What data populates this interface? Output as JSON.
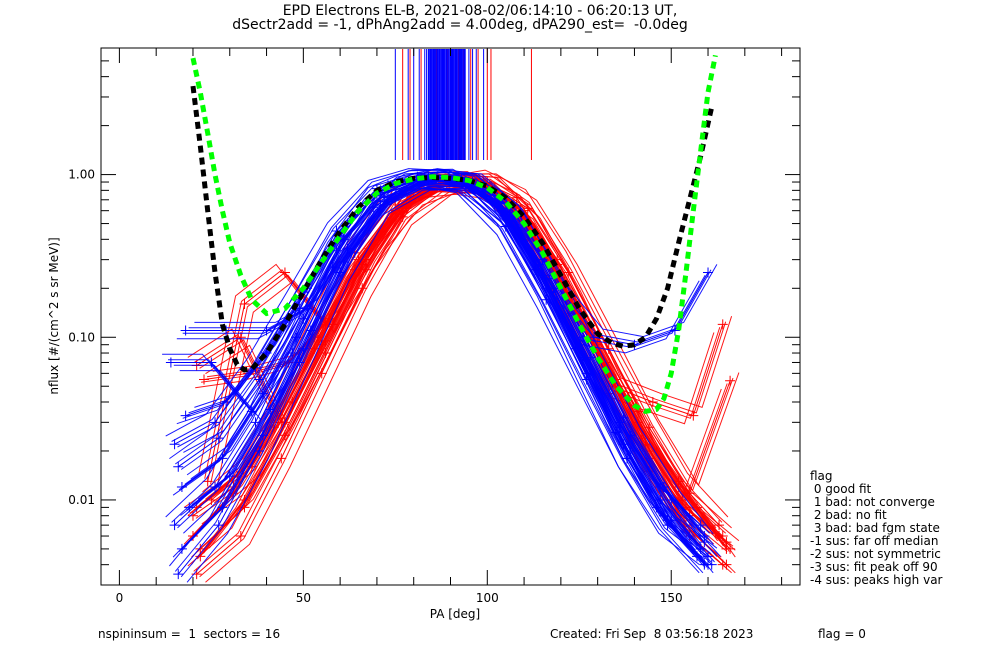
{
  "chart_data": {
    "type": "line",
    "title_line1": "EPD Electrons EL-B, 2021-08-02/06:14:10 - 06:20:13 UT,",
    "title_line2": "dSectr2add = -1, dPhAng2add = 4.00deg, dPA290_est=  -0.0deg",
    "xlabel": "PA [deg]",
    "ylabel": "nflux [#/(cm^2 s sr MeV)]",
    "xlim": [
      -5,
      185
    ],
    "ylim": [
      0.003,
      6
    ],
    "yscale": "log",
    "x_ticks": [
      0,
      50,
      100,
      150
    ],
    "x_tick_labels": [
      "0",
      "50",
      "100",
      "150"
    ],
    "y_ticks": [
      1.0,
      0.1,
      0.01
    ],
    "y_tick_labels": [
      "1.00",
      "0.10",
      "0.01"
    ],
    "colors": {
      "red": "#ff0000",
      "blue": "#0000ff",
      "green": "#00ff00",
      "black": "#000000"
    },
    "peak_marker_lines": {
      "blue": [
        75,
        78.5,
        80,
        81.5,
        83,
        83.5,
        84,
        84.5,
        85,
        85.5,
        86,
        86.5,
        87,
        87.5,
        88,
        88.5,
        89,
        89.5,
        90,
        90.5,
        91,
        91.5,
        92,
        92.5,
        93,
        93.5,
        94,
        95,
        96,
        97,
        99
      ],
      "red": [
        77,
        79,
        82,
        86.2,
        89.2,
        92.2,
        93.7,
        95.5,
        97.5,
        100,
        101,
        112
      ]
    },
    "fit_black": {
      "x": [
        20,
        22,
        24,
        26,
        28,
        30,
        32,
        34,
        36,
        40,
        45,
        50,
        55,
        60,
        65,
        70,
        75,
        80,
        85,
        90,
        95,
        100,
        105,
        110,
        115,
        120,
        125,
        130,
        134,
        137,
        140,
        143,
        146,
        149,
        152,
        155,
        158,
        161
      ],
      "y": [
        3.5,
        1.5,
        0.6,
        0.25,
        0.12,
        0.085,
        0.068,
        0.063,
        0.064,
        0.08,
        0.12,
        0.19,
        0.3,
        0.45,
        0.63,
        0.8,
        0.9,
        0.95,
        0.96,
        0.95,
        0.92,
        0.85,
        0.72,
        0.55,
        0.38,
        0.24,
        0.15,
        0.105,
        0.092,
        0.088,
        0.09,
        0.1,
        0.13,
        0.2,
        0.38,
        0.7,
        1.3,
        2.6
      ]
    },
    "fit_green": {
      "x": [
        20,
        22,
        24,
        26,
        28,
        30,
        33,
        36,
        40,
        45,
        50,
        55,
        60,
        65,
        70,
        75,
        80,
        85,
        90,
        95,
        100,
        105,
        110,
        115,
        120,
        125,
        130,
        135,
        140,
        143,
        146,
        148,
        150,
        152,
        154,
        156,
        158,
        160,
        162
      ],
      "y": [
        5.2,
        3.2,
        1.8,
        1.0,
        0.6,
        0.38,
        0.24,
        0.17,
        0.14,
        0.15,
        0.2,
        0.29,
        0.42,
        0.6,
        0.77,
        0.88,
        0.94,
        0.97,
        0.96,
        0.92,
        0.83,
        0.68,
        0.5,
        0.33,
        0.2,
        0.12,
        0.075,
        0.05,
        0.038,
        0.035,
        0.036,
        0.042,
        0.06,
        0.11,
        0.25,
        0.6,
        1.4,
        3.2,
        5.4
      ]
    },
    "series": [
      {
        "name": "red-trace",
        "color": "red",
        "x": [
          21,
          33,
          44,
          55,
          66,
          77,
          88,
          99,
          110,
          121,
          132,
          143,
          154,
          165
        ],
        "y": [
          0.0035,
          0.006,
          0.018,
          0.06,
          0.2,
          0.55,
          0.85,
          0.9,
          0.6,
          0.22,
          0.07,
          0.02,
          0.007,
          0.004
        ]
      },
      {
        "name": "red-trace",
        "color": "red",
        "x": [
          22,
          34,
          45,
          56,
          67,
          78,
          89,
          100,
          111,
          122,
          133,
          144,
          155,
          166
        ],
        "y": [
          0.005,
          0.009,
          0.025,
          0.08,
          0.26,
          0.62,
          0.88,
          0.86,
          0.5,
          0.18,
          0.06,
          0.018,
          0.008,
          0.005
        ]
      },
      {
        "name": "red-trace",
        "color": "red",
        "x": [
          20,
          31,
          42,
          53,
          64,
          75,
          86,
          97,
          108,
          119,
          130,
          141,
          152,
          163
        ],
        "y": [
          0.008,
          0.012,
          0.03,
          0.1,
          0.33,
          0.7,
          0.92,
          0.93,
          0.65,
          0.28,
          0.09,
          0.03,
          0.012,
          0.006
        ]
      },
      {
        "name": "red-trace",
        "color": "red",
        "x": [
          23,
          35,
          46,
          57,
          68,
          79,
          90,
          101,
          112,
          123,
          134,
          145,
          156,
          164
        ],
        "y": [
          0.055,
          0.06,
          0.07,
          0.13,
          0.35,
          0.7,
          0.9,
          0.85,
          0.48,
          0.17,
          0.05,
          0.04,
          0.033,
          0.12
        ]
      },
      {
        "name": "red-trace",
        "color": "red",
        "x": [
          21,
          33,
          44,
          55,
          66,
          77,
          88,
          99,
          110,
          121,
          132,
          143,
          154,
          165
        ],
        "y": [
          0.067,
          0.1,
          0.03,
          0.09,
          0.28,
          0.62,
          0.9,
          0.88,
          0.55,
          0.2,
          0.065,
          0.022,
          0.009,
          0.0055
        ]
      },
      {
        "name": "red-trace",
        "color": "red",
        "x": [
          22,
          34,
          45,
          56,
          67,
          78,
          89,
          100,
          111,
          122,
          133,
          144,
          155,
          166
        ],
        "y": [
          0.0045,
          0.01,
          0.03,
          0.095,
          0.3,
          0.66,
          0.9,
          0.9,
          0.62,
          0.25,
          0.085,
          0.028,
          0.011,
          0.054
        ]
      },
      {
        "name": "red-trace",
        "color": "red",
        "x": [
          24,
          34,
          45,
          56,
          67,
          78,
          89,
          100,
          111,
          122,
          133,
          144,
          155,
          164
        ],
        "y": [
          0.013,
          0.16,
          0.25,
          0.12,
          0.3,
          0.8,
          0.85,
          0.78,
          0.4,
          0.14,
          0.045,
          0.015,
          0.006,
          0.004
        ]
      },
      {
        "name": "red-trace",
        "color": "red",
        "x": [
          20,
          31,
          42,
          53,
          64,
          75,
          86,
          97,
          108,
          119,
          130,
          141,
          152,
          163
        ],
        "y": [
          0.006,
          0.011,
          0.028,
          0.085,
          0.26,
          0.6,
          0.86,
          0.95,
          0.72,
          0.3,
          0.1,
          0.035,
          0.013,
          0.007
        ]
      },
      {
        "name": "red-trace",
        "color": "red",
        "x": [
          25,
          36,
          47,
          58,
          69,
          80,
          91,
          102,
          113,
          124,
          135,
          146,
          157,
          165
        ],
        "y": [
          0.01,
          0.016,
          0.04,
          0.12,
          0.37,
          0.73,
          0.9,
          0.82,
          0.4,
          0.15,
          0.055,
          0.02,
          0.009,
          0.005
        ]
      },
      {
        "name": "red-trace",
        "color": "red",
        "x": [
          21,
          32,
          43,
          54,
          65,
          76,
          87,
          98,
          109,
          120,
          131,
          142,
          153,
          164
        ],
        "y": [
          0.009,
          0.014,
          0.035,
          0.1,
          0.3,
          0.65,
          0.88,
          0.9,
          0.6,
          0.22,
          0.07,
          0.024,
          0.01,
          0.006
        ]
      },
      {
        "name": "blue-trace",
        "color": "blue",
        "x": [
          16,
          27,
          38,
          49,
          60,
          71,
          82,
          93,
          104,
          115,
          126,
          137,
          148,
          159
        ],
        "y": [
          0.0035,
          0.007,
          0.02,
          0.07,
          0.25,
          0.65,
          0.9,
          0.92,
          0.62,
          0.24,
          0.075,
          0.022,
          0.008,
          0.004
        ]
      },
      {
        "name": "blue-trace",
        "color": "blue",
        "x": [
          17,
          28,
          39,
          50,
          61,
          72,
          83,
          94,
          105,
          116,
          127,
          138,
          149,
          160
        ],
        "y": [
          0.005,
          0.009,
          0.025,
          0.085,
          0.29,
          0.68,
          0.92,
          0.9,
          0.56,
          0.2,
          0.06,
          0.018,
          0.007,
          0.0045
        ]
      },
      {
        "name": "blue-trace",
        "color": "blue",
        "x": [
          15,
          26,
          37,
          48,
          59,
          70,
          81,
          92,
          103,
          114,
          125,
          136,
          147,
          158
        ],
        "y": [
          0.007,
          0.012,
          0.03,
          0.1,
          0.34,
          0.74,
          0.94,
          0.95,
          0.68,
          0.28,
          0.09,
          0.028,
          0.01,
          0.005
        ]
      },
      {
        "name": "blue-trace",
        "color": "blue",
        "x": [
          18,
          29,
          40,
          51,
          62,
          73,
          84,
          95,
          106,
          117,
          128,
          139,
          150,
          161
        ],
        "y": [
          0.11,
          0.11,
          0.11,
          0.15,
          0.35,
          0.72,
          0.93,
          0.88,
          0.52,
          0.19,
          0.06,
          0.02,
          0.0075,
          0.004
        ]
      },
      {
        "name": "blue-trace",
        "color": "blue",
        "x": [
          14,
          25,
          36,
          47,
          58,
          69,
          80,
          91,
          102,
          113,
          124,
          135,
          146,
          157
        ],
        "y": [
          0.07,
          0.07,
          0.035,
          0.08,
          0.27,
          0.63,
          0.9,
          0.93,
          0.66,
          0.26,
          0.085,
          0.026,
          0.009,
          0.0045
        ]
      },
      {
        "name": "blue-trace",
        "color": "blue",
        "x": [
          17,
          28,
          39,
          50,
          61,
          72,
          83,
          94,
          105,
          116,
          127,
          138,
          149,
          160
        ],
        "y": [
          0.012,
          0.018,
          0.045,
          0.13,
          0.4,
          0.78,
          0.96,
          0.87,
          0.48,
          0.17,
          0.055,
          0.018,
          0.0075,
          0.004
        ]
      },
      {
        "name": "blue-trace",
        "color": "blue",
        "x": [
          16,
          27,
          38,
          49,
          60,
          71,
          82,
          93,
          104,
          115,
          126,
          137,
          148,
          159
        ],
        "y": [
          0.016,
          0.024,
          0.055,
          0.15,
          0.42,
          0.8,
          0.95,
          0.96,
          0.7,
          0.3,
          0.1,
          0.032,
          0.012,
          0.006
        ]
      },
      {
        "name": "blue-trace",
        "color": "blue",
        "x": [
          19,
          30,
          41,
          52,
          63,
          74,
          85,
          96,
          107,
          118,
          129,
          140,
          151,
          160
        ],
        "y": [
          0.009,
          0.014,
          0.036,
          0.11,
          0.33,
          0.7,
          0.93,
          0.9,
          0.55,
          0.2,
          0.1,
          0.09,
          0.11,
          0.25
        ]
      },
      {
        "name": "blue-trace",
        "color": "blue",
        "x": [
          15,
          26,
          37,
          48,
          59,
          70,
          81,
          92,
          103,
          114,
          125,
          136,
          147,
          158
        ],
        "y": [
          0.022,
          0.03,
          0.065,
          0.17,
          0.45,
          0.82,
          0.97,
          0.94,
          0.64,
          0.26,
          0.085,
          0.03,
          0.012,
          0.007
        ]
      },
      {
        "name": "blue-trace",
        "color": "blue",
        "x": [
          18,
          29,
          40,
          51,
          62,
          73,
          84,
          95,
          106,
          117,
          128,
          139,
          150,
          159
        ],
        "y": [
          0.033,
          0.04,
          0.08,
          0.2,
          0.5,
          0.86,
          0.97,
          0.9,
          0.58,
          0.23,
          0.075,
          0.025,
          0.01,
          0.0055
        ]
      }
    ],
    "annotations": {
      "legend_title": "flag",
      "legend_items": [
        " 0 good fit",
        " 1 bad: not converge",
        " 2 bad: no fit",
        " 3 bad: bad fgm state",
        "-1 sus: far off median",
        "-2 sus: not symmetric",
        "-3 sus: fit peak off 90",
        "-4 sus: peaks high var"
      ],
      "footer_left": "nspininsum =  1  sectors = 16",
      "footer_right": "Created: Fri Sep  8 03:56:18 2023",
      "footer_flag": "flag = 0"
    }
  }
}
